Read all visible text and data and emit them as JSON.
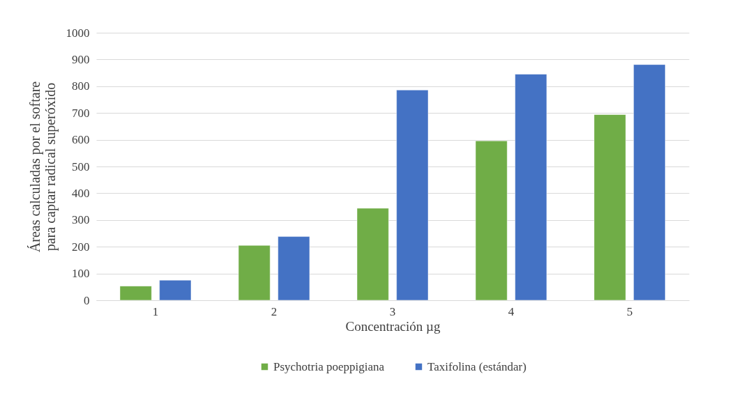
{
  "chart_data": {
    "type": "bar",
    "xlabel": "Concentración µg",
    "ylabel": "Áreas calculadas por el softare para captar radical superóxido",
    "categories": [
      "1",
      "2",
      "3",
      "4",
      "5"
    ],
    "series": [
      {
        "name": "Psychotria poeppigiana",
        "color": "#70ad47",
        "values": [
          53,
          205,
          344,
          596,
          694
        ]
      },
      {
        "name": "Taxifolina (estándar)",
        "color": "#4472c4",
        "values": [
          75,
          238,
          786,
          845,
          881
        ]
      }
    ],
    "ylim": [
      0,
      1000
    ],
    "yticks": [
      0,
      100,
      200,
      300,
      400,
      500,
      600,
      700,
      800,
      900,
      1000
    ],
    "grid": "y",
    "legend": "bottom"
  }
}
